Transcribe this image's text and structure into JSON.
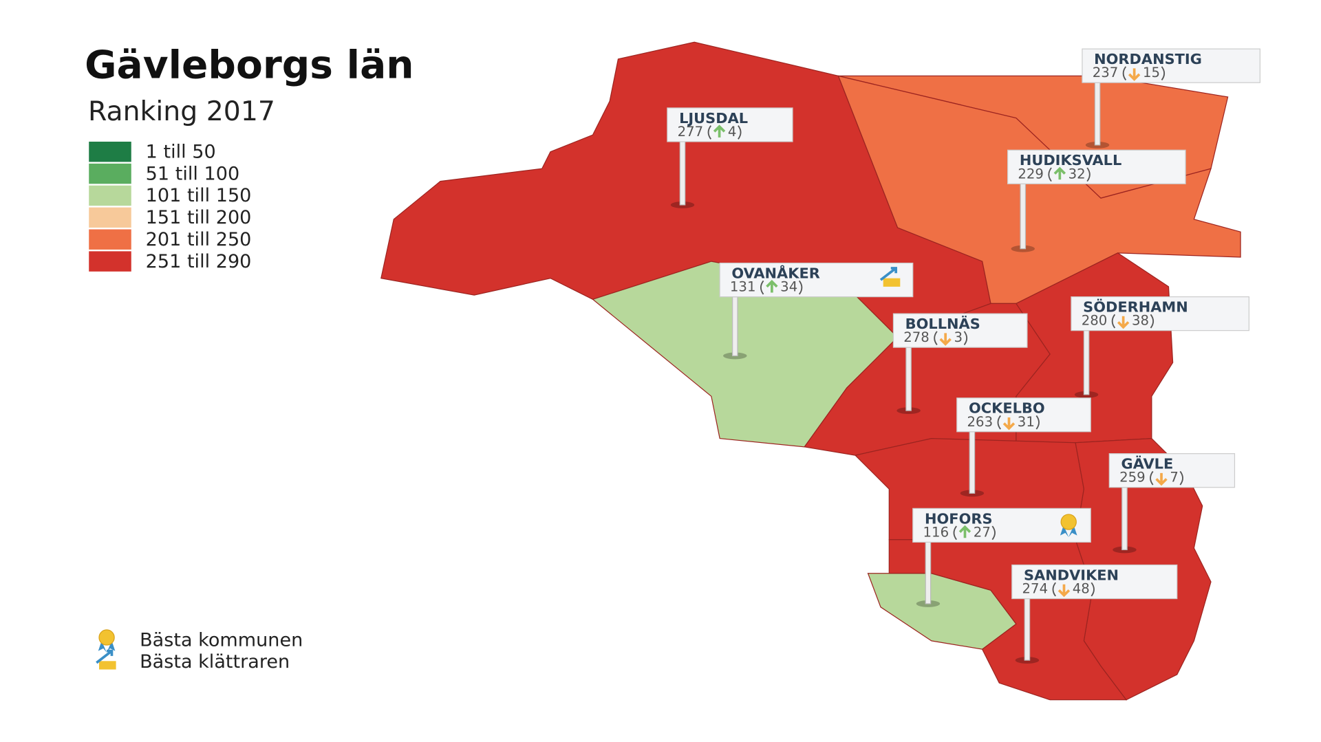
{
  "header": {
    "title": "Gävleborgs län",
    "subtitle": "Ranking 2017"
  },
  "legend": [
    {
      "label": "1 till 50",
      "color": "#1e7d45"
    },
    {
      "label": "51 till 100",
      "color": "#5aad5f"
    },
    {
      "label": "101 till 150",
      "color": "#b7d89b"
    },
    {
      "label": "151 till 200",
      "color": "#f7c99a"
    },
    {
      "label": "201 till 250",
      "color": "#ef7045"
    },
    {
      "label": "251 till 290",
      "color": "#d3322c"
    }
  ],
  "badge_legend": [
    {
      "badge": "best",
      "label": "Bästa kommunen"
    },
    {
      "badge": "climber",
      "label": "Bästa klättraren"
    }
  ],
  "municipalities": [
    {
      "name": "LJUSDAL",
      "rank": 277,
      "change": 4,
      "direction": "up",
      "color": "#d3322c"
    },
    {
      "name": "NORDANSTIG",
      "rank": 237,
      "change": 15,
      "direction": "down",
      "color": "#ef7045"
    },
    {
      "name": "HUDIKSVALL",
      "rank": 229,
      "change": 32,
      "direction": "up",
      "color": "#ef7045"
    },
    {
      "name": "OVANÅKER",
      "rank": 131,
      "change": 34,
      "direction": "up",
      "color": "#b7d89b",
      "badge": "climber"
    },
    {
      "name": "BOLLNÄS",
      "rank": 278,
      "change": 3,
      "direction": "down",
      "color": "#d3322c"
    },
    {
      "name": "SÖDERHAMN",
      "rank": 280,
      "change": 38,
      "direction": "down",
      "color": "#d3322c"
    },
    {
      "name": "OCKELBO",
      "rank": 263,
      "change": 31,
      "direction": "down",
      "color": "#d3322c"
    },
    {
      "name": "GÄVLE",
      "rank": 259,
      "change": 7,
      "direction": "down",
      "color": "#d3322c"
    },
    {
      "name": "HOFORS",
      "rank": 116,
      "change": 27,
      "direction": "up",
      "color": "#b7d89b",
      "badge": "best"
    },
    {
      "name": "SANDVIKEN",
      "rank": 274,
      "change": 48,
      "direction": "down",
      "color": "#d3322c"
    }
  ]
}
